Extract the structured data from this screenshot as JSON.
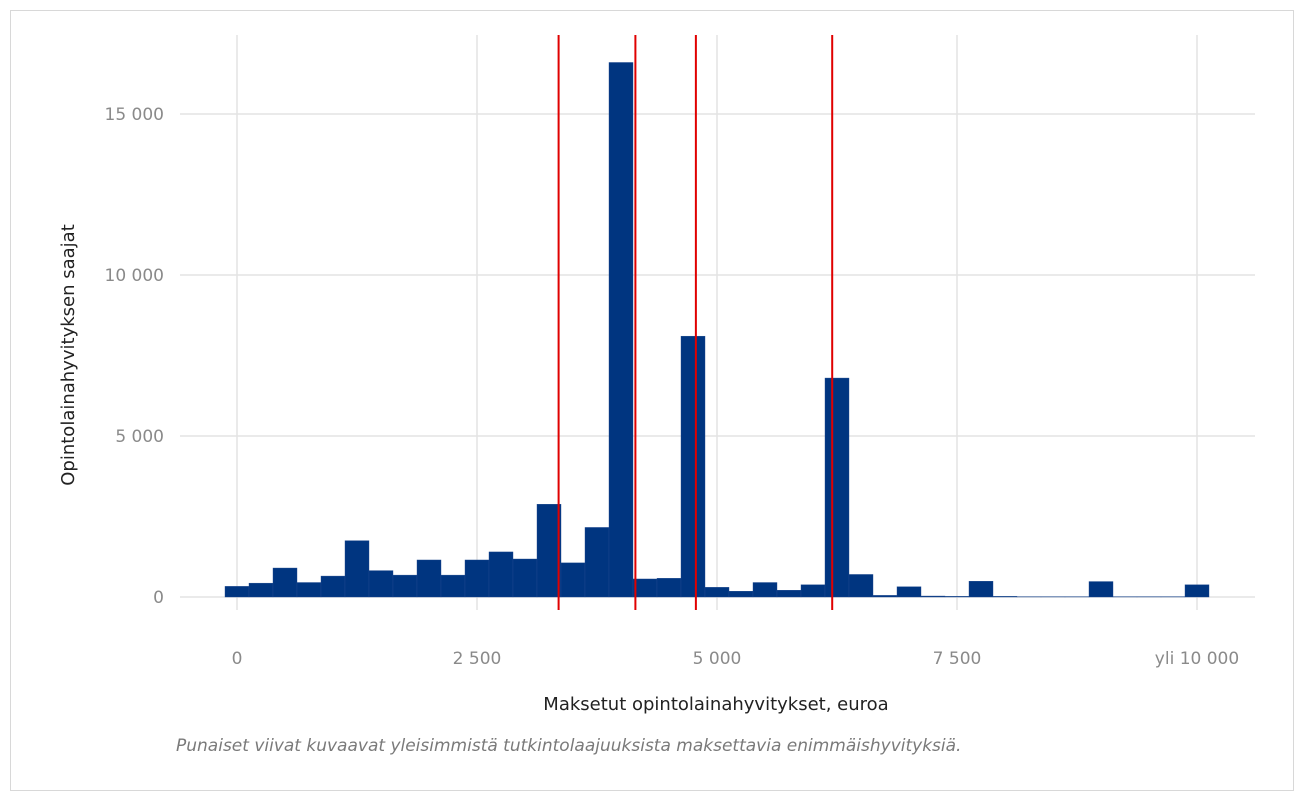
{
  "chart_data": {
    "type": "bar",
    "xlabel": "Maksetut opintolainahyvitykset, euroa",
    "ylabel": "Opintolainahyvityksen saajat",
    "caption": "Punaiset viivat kuvaavat yleisimmistä tutkintolaajuuksista maksettavia enimmäishyvityksiä.",
    "xlim": [
      -300,
      10500
    ],
    "ylim": [
      -150,
      17500
    ],
    "bin_width": 250,
    "x_ticks": [
      {
        "value": 0,
        "label": "0"
      },
      {
        "value": 2500,
        "label": "2 500"
      },
      {
        "value": 5000,
        "label": "5 000"
      },
      {
        "value": 7500,
        "label": "7 500"
      },
      {
        "value": 10000,
        "label": "yli 10 000"
      }
    ],
    "y_ticks": [
      {
        "value": 0,
        "label": "0"
      },
      {
        "value": 5000,
        "label": "5 000"
      },
      {
        "value": 10000,
        "label": "10 000"
      },
      {
        "value": 15000,
        "label": "15 000"
      }
    ],
    "bins_x": [
      0,
      250,
      500,
      750,
      1000,
      1250,
      1500,
      1750,
      2000,
      2250,
      2500,
      2750,
      3000,
      3250,
      3500,
      3750,
      4000,
      4250,
      4500,
      4750,
      5000,
      5250,
      5500,
      5750,
      6000,
      6250,
      6500,
      6750,
      7000,
      7250,
      7500,
      7750,
      8000,
      8250,
      8500,
      8750,
      9000,
      9250,
      9500,
      9750,
      10000
    ],
    "values": [
      330,
      430,
      900,
      450,
      650,
      1750,
      820,
      680,
      1150,
      680,
      1150,
      1400,
      1180,
      2880,
      1060,
      2160,
      16600,
      560,
      580,
      8100,
      300,
      180,
      450,
      210,
      380,
      6800,
      700,
      50,
      320,
      30,
      20,
      490,
      20,
      10,
      10,
      10,
      480,
      10,
      10,
      10,
      380
    ],
    "reference_lines": [
      3350,
      4150,
      4780,
      6200
    ],
    "colors": {
      "bar": "#003580",
      "reference": "#e00000",
      "grid": "#e3e3e3"
    },
    "grid": true
  }
}
